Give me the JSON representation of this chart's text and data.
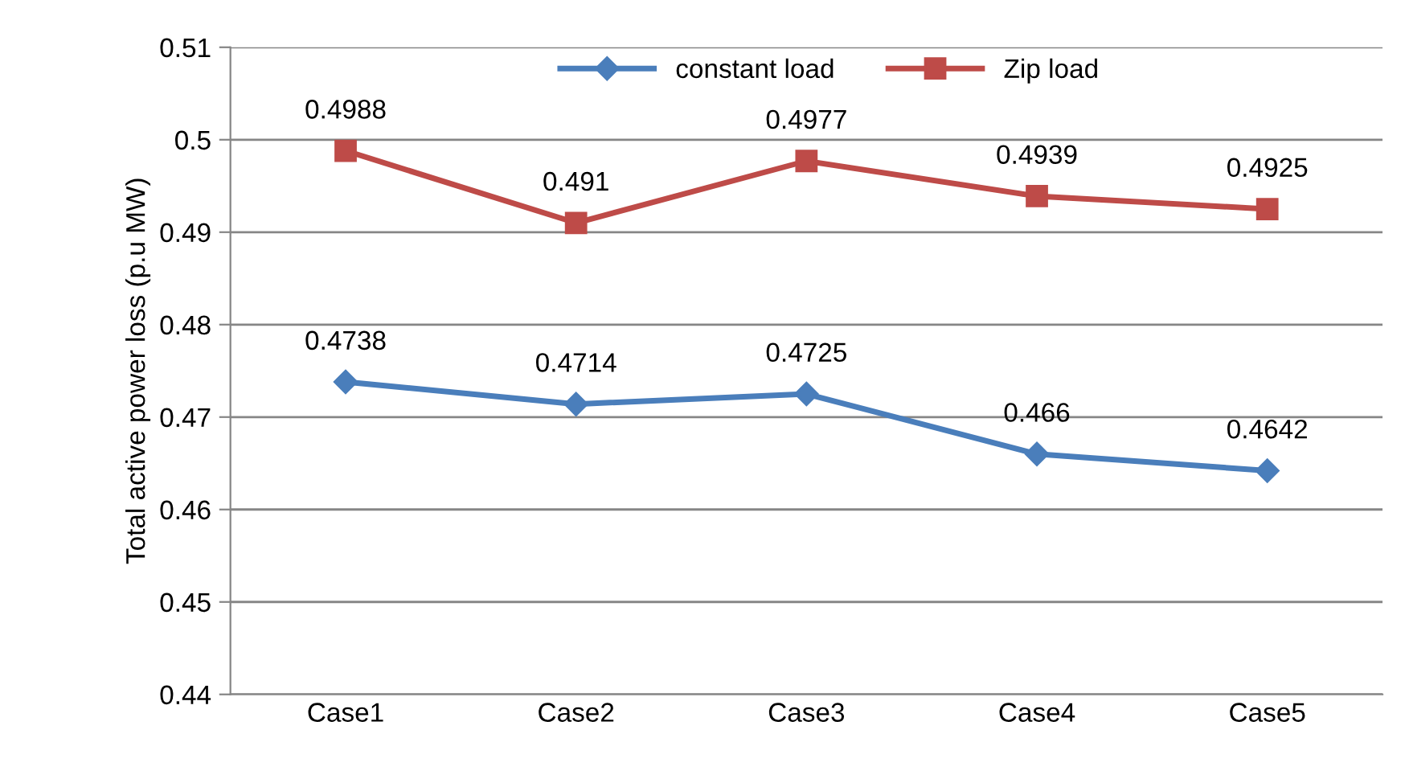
{
  "chart_data": {
    "type": "line",
    "ylabel": "Total active power loss (p.u MW)",
    "categories": [
      "Case1",
      "Case2",
      "Case3",
      "Case4",
      "Case5"
    ],
    "series": [
      {
        "name": "constant load",
        "color": "#4a7ebb",
        "marker": "diamond",
        "values": [
          0.4738,
          0.4714,
          0.4725,
          0.466,
          0.4642
        ]
      },
      {
        "name": "Zip load",
        "color": "#be4b48",
        "marker": "square",
        "values": [
          0.4988,
          0.491,
          0.4977,
          0.4939,
          0.4925
        ]
      }
    ],
    "ylim": [
      0.44,
      0.51
    ],
    "yticks": [
      0.44,
      0.45,
      0.46,
      0.47,
      0.48,
      0.49,
      {
        "value": 0.5,
        "label": "0.5"
      },
      0.51
    ],
    "grid": "y",
    "legend": "top",
    "data_labels": true,
    "line_style": "solid"
  }
}
